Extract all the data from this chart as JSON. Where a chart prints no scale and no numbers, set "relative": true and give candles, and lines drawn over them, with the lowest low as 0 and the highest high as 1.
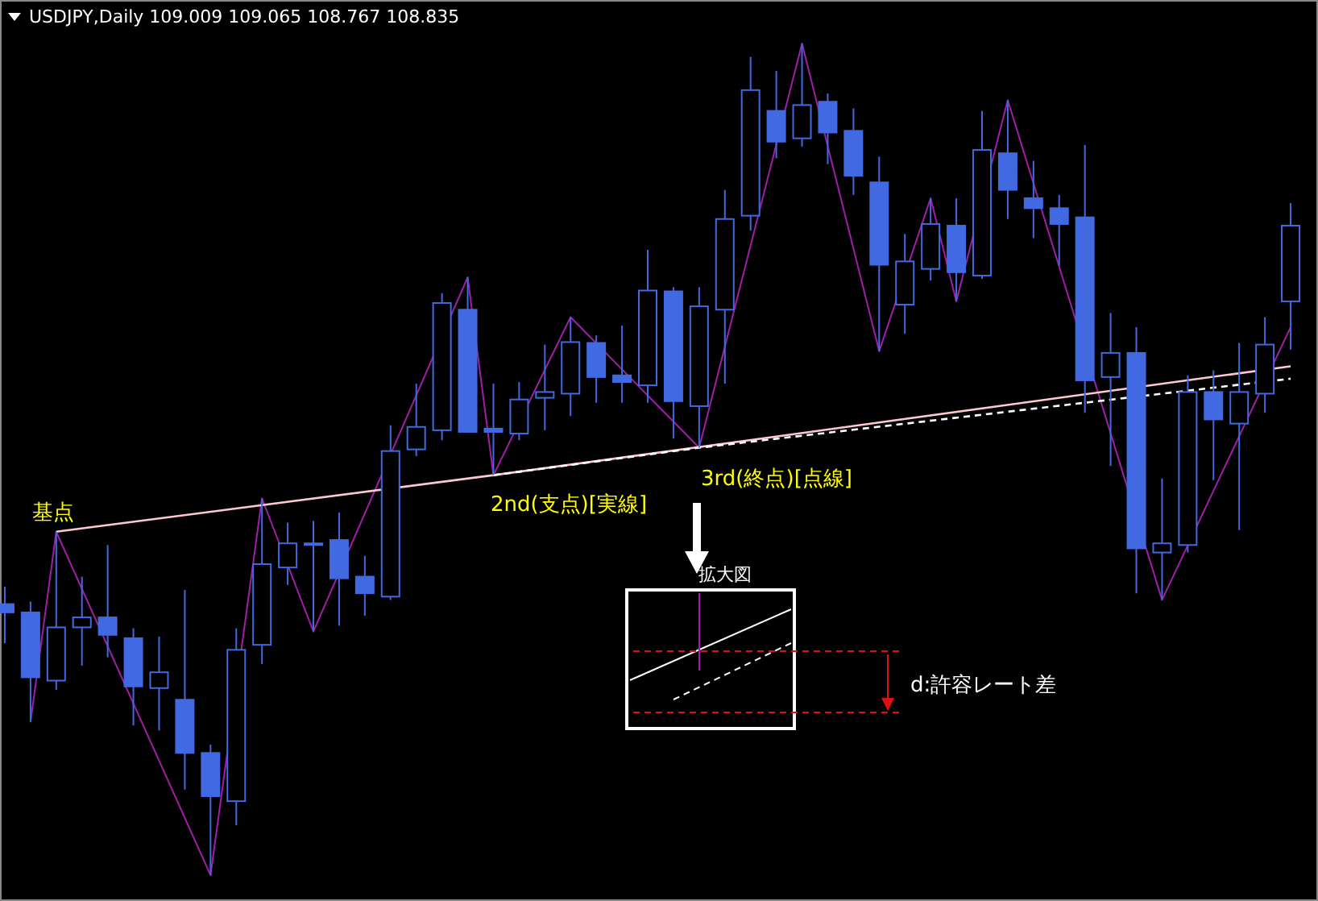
{
  "chart_data": {
    "type": "candlestick",
    "title": "USDJPY,Daily  109.009 109.065 108.767 108.835",
    "relative": true,
    "color": "#4169e1",
    "categories": [
      null,
      null,
      null,
      null,
      null,
      null,
      null,
      null,
      null,
      null,
      null,
      null,
      null,
      null,
      null,
      null,
      null,
      null,
      null,
      null,
      null,
      null,
      null,
      null,
      null,
      null,
      null,
      null,
      null,
      null,
      null,
      null,
      null,
      null,
      null,
      null,
      null,
      null,
      null,
      null,
      null,
      null,
      null,
      null,
      null,
      null,
      null,
      null,
      null,
      null,
      null
    ],
    "ohlc": [
      [
        0.326,
        0.347,
        0.279,
        0.316
      ],
      [
        0.316,
        0.329,
        0.184,
        0.238
      ],
      [
        0.234,
        0.413,
        0.223,
        0.298
      ],
      [
        0.298,
        0.359,
        0.252,
        0.31
      ],
      [
        0.31,
        0.397,
        0.262,
        0.289
      ],
      [
        0.285,
        0.297,
        0.18,
        0.227
      ],
      [
        0.225,
        0.287,
        0.174,
        0.244
      ],
      [
        0.211,
        0.343,
        0.103,
        0.147
      ],
      [
        0.147,
        0.157,
        0,
        0.095
      ],
      [
        0.089,
        0.297,
        0.06,
        0.271
      ],
      [
        0.277,
        0.453,
        0.254,
        0.374
      ],
      [
        0.37,
        0.424,
        0.349,
        0.399
      ],
      [
        0.399,
        0.426,
        0.293,
        0.399
      ],
      [
        0.403,
        0.436,
        0.3,
        0.357
      ],
      [
        0.359,
        0.384,
        0.312,
        0.339
      ],
      [
        0.335,
        0.541,
        0.331,
        0.51
      ],
      [
        0.512,
        0.591,
        0.504,
        0.539
      ],
      [
        0.535,
        0.7,
        0.523,
        0.688
      ],
      [
        0.68,
        0.719,
        0.533,
        0.533
      ],
      [
        0.537,
        0.591,
        0.481,
        0.533
      ],
      [
        0.531,
        0.593,
        0.523,
        0.572
      ],
      [
        0.574,
        0.638,
        0.535,
        0.581
      ],
      [
        0.579,
        0.671,
        0.552,
        0.641
      ],
      [
        0.64,
        0.649,
        0.568,
        0.599
      ],
      [
        0.601,
        0.661,
        0.568,
        0.593
      ],
      [
        0.589,
        0.752,
        0.568,
        0.703
      ],
      [
        0.702,
        0.707,
        0.525,
        0.57
      ],
      [
        0.564,
        0.707,
        0.514,
        0.684
      ],
      [
        0.68,
        0.824,
        0.591,
        0.789
      ],
      [
        0.793,
        0.984,
        0.775,
        0.944
      ],
      [
        0.919,
        0.967,
        0.862,
        0.882
      ],
      [
        0.886,
        1,
        0.876,
        0.926
      ],
      [
        0.93,
        0.94,
        0.855,
        0.893
      ],
      [
        0.895,
        0.922,
        0.818,
        0.841
      ],
      [
        0.833,
        0.864,
        0.63,
        0.734
      ],
      [
        0.686,
        0.771,
        0.651,
        0.738
      ],
      [
        0.729,
        0.814,
        0.715,
        0.783
      ],
      [
        0.781,
        0.814,
        0.69,
        0.725
      ],
      [
        0.721,
        0.919,
        0.717,
        0.872
      ],
      [
        0.868,
        0.932,
        0.789,
        0.824
      ],
      [
        0.814,
        0.859,
        0.766,
        0.802
      ],
      [
        0.802,
        0.818,
        0.733,
        0.783
      ],
      [
        0.791,
        0.878,
        0.556,
        0.595
      ],
      [
        0.599,
        0.676,
        0.492,
        0.628
      ],
      [
        0.628,
        0.659,
        0.339,
        0.393
      ],
      [
        0.388,
        0.477,
        0.331,
        0.399
      ],
      [
        0.397,
        0.601,
        0.388,
        0.581
      ],
      [
        0.581,
        0.607,
        0.475,
        0.548
      ],
      [
        0.543,
        0.64,
        0.415,
        0.581
      ],
      [
        0.579,
        0.671,
        0.556,
        0.638
      ],
      [
        0.69,
        0.808,
        0.632,
        0.781
      ]
    ],
    "series": [
      {
        "type": "line",
        "color": "#a01fa8",
        "line_style": "solid",
        "values": [
          null,
          0.184,
          0.413,
          null,
          null,
          null,
          null,
          null,
          0,
          null,
          0.453,
          null,
          0.293,
          null,
          null,
          null,
          null,
          null,
          0.719,
          0.481,
          null,
          null,
          0.671,
          null,
          null,
          null,
          null,
          0.514,
          null,
          null,
          null,
          1,
          null,
          null,
          0.63,
          null,
          0.814,
          0.69,
          null,
          0.932,
          null,
          null,
          null,
          null,
          null,
          0.331,
          null,
          null,
          null,
          null,
          0.659
        ]
      },
      {
        "type": "line",
        "color": "#ffc8d0",
        "line_style": "solid",
        "values": [
          null,
          null,
          0.413,
          null,
          null,
          null,
          null,
          null,
          null,
          null,
          null,
          null,
          null,
          null,
          null,
          null,
          null,
          null,
          null,
          0.481,
          null,
          null,
          null,
          null,
          null,
          null,
          null,
          null,
          null,
          null,
          null,
          null,
          null,
          null,
          null,
          null,
          null,
          null,
          null,
          null,
          null,
          null,
          null,
          null,
          null,
          null,
          null,
          null,
          null,
          null,
          0.612
        ]
      },
      {
        "type": "line",
        "color": "#ffffff",
        "line_style": "dashed",
        "values": [
          null,
          null,
          null,
          null,
          null,
          null,
          null,
          null,
          null,
          null,
          null,
          null,
          null,
          null,
          null,
          null,
          null,
          null,
          null,
          0.481,
          null,
          null,
          null,
          null,
          null,
          null,
          null,
          0.514,
          null,
          null,
          null,
          null,
          null,
          null,
          null,
          null,
          null,
          null,
          null,
          null,
          null,
          null,
          null,
          null,
          null,
          null,
          null,
          null,
          null,
          null,
          0.597
        ]
      }
    ],
    "annotations": [
      "基点",
      "2nd(支点)[実線]",
      "3rd(終点)[点線]",
      "拡大図",
      "d:許容レート差"
    ],
    "grid": false
  }
}
